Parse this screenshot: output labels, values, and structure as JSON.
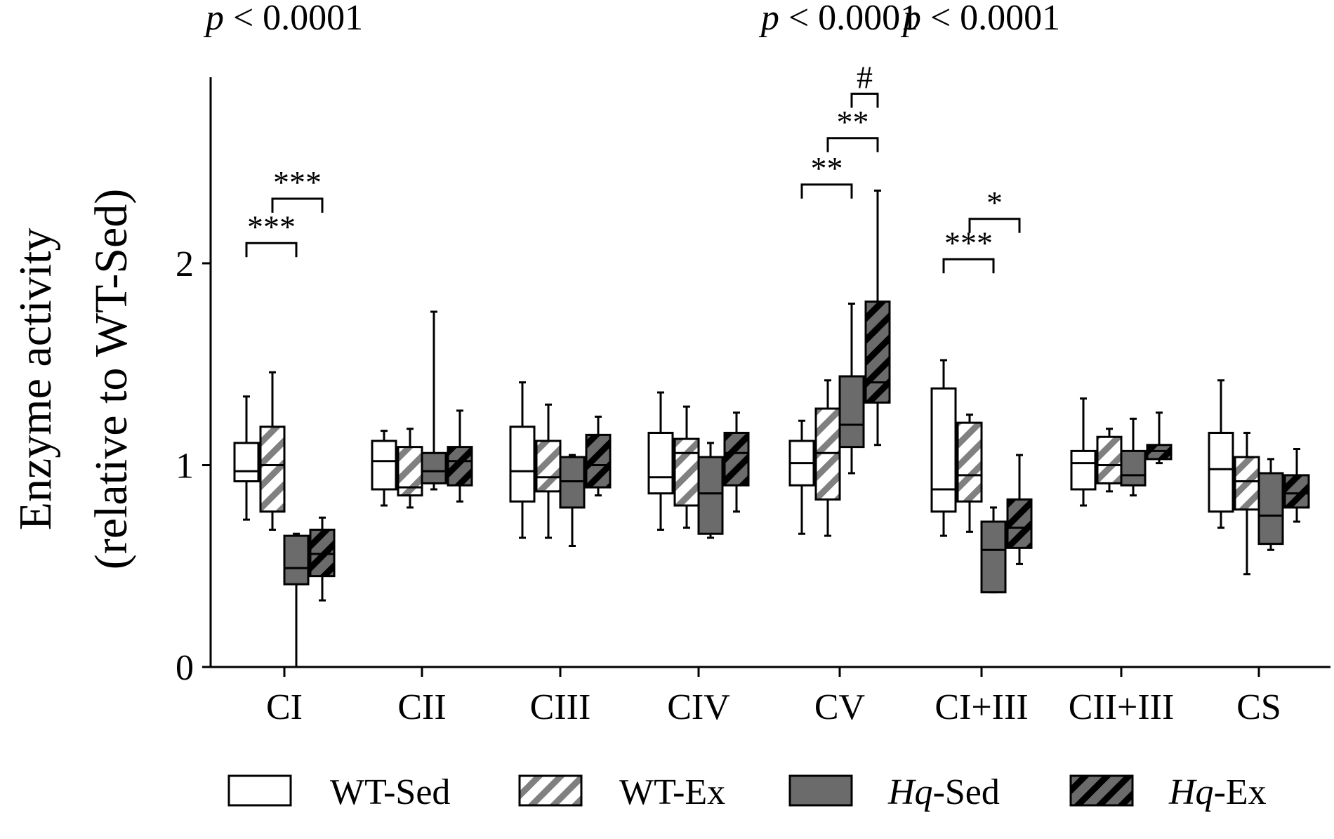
{
  "chart_data": {
    "type": "box",
    "title": "",
    "ylabel_line1": "Enzyme activity",
    "ylabel_line2": "(relative to WT-Sed)",
    "ylim": [
      0,
      2.9
    ],
    "yticks": [
      0,
      1,
      2
    ],
    "categories": [
      "CI",
      "CII",
      "CIII",
      "CIV",
      "CV",
      "CI+III",
      "CII+III",
      "CS"
    ],
    "series": [
      {
        "name": "WT-Sed",
        "prefix": "WT",
        "suffix": "-Sed",
        "italic_prefix": false,
        "pattern": "white",
        "boxes": [
          {
            "min": 0.73,
            "q1": 0.92,
            "median": 0.97,
            "q3": 1.11,
            "max": 1.34
          },
          {
            "min": 0.8,
            "q1": 0.88,
            "median": 1.02,
            "q3": 1.12,
            "max": 1.17
          },
          {
            "min": 0.64,
            "q1": 0.82,
            "median": 0.97,
            "q3": 1.19,
            "max": 1.41
          },
          {
            "min": 0.68,
            "q1": 0.86,
            "median": 0.94,
            "q3": 1.16,
            "max": 1.36
          },
          {
            "min": 0.66,
            "q1": 0.9,
            "median": 1.01,
            "q3": 1.12,
            "max": 1.22
          },
          {
            "min": 0.65,
            "q1": 0.77,
            "median": 0.88,
            "q3": 1.38,
            "max": 1.52
          },
          {
            "min": 0.8,
            "q1": 0.88,
            "median": 1.01,
            "q3": 1.07,
            "max": 1.33
          },
          {
            "min": 0.69,
            "q1": 0.77,
            "median": 0.98,
            "q3": 1.16,
            "max": 1.42
          }
        ]
      },
      {
        "name": "WT-Ex",
        "prefix": "WT",
        "suffix": "-Ex",
        "italic_prefix": false,
        "pattern": "white-hatch",
        "boxes": [
          {
            "min": 0.68,
            "q1": 0.77,
            "median": 1.0,
            "q3": 1.19,
            "max": 1.46
          },
          {
            "min": 0.79,
            "q1": 0.85,
            "median": 0.89,
            "q3": 1.09,
            "max": 1.18
          },
          {
            "min": 0.64,
            "q1": 0.87,
            "median": 0.94,
            "q3": 1.12,
            "max": 1.3
          },
          {
            "min": 0.69,
            "q1": 0.8,
            "median": 1.06,
            "q3": 1.13,
            "max": 1.29
          },
          {
            "min": 0.65,
            "q1": 0.83,
            "median": 1.06,
            "q3": 1.28,
            "max": 1.42
          },
          {
            "min": 0.67,
            "q1": 0.82,
            "median": 0.95,
            "q3": 1.21,
            "max": 1.25
          },
          {
            "min": 0.87,
            "q1": 0.91,
            "median": 1.0,
            "q3": 1.14,
            "max": 1.18
          },
          {
            "min": 0.46,
            "q1": 0.78,
            "median": 0.92,
            "q3": 1.04,
            "max": 1.16
          }
        ]
      },
      {
        "name": "Hq-Sed",
        "prefix": "Hq",
        "suffix": "-Sed",
        "italic_prefix": true,
        "pattern": "gray",
        "boxes": [
          {
            "min": 0.0,
            "q1": 0.41,
            "median": 0.49,
            "q3": 0.65,
            "max": 0.66
          },
          {
            "min": 0.88,
            "q1": 0.91,
            "median": 0.97,
            "q3": 1.06,
            "max": 1.76
          },
          {
            "min": 0.6,
            "q1": 0.79,
            "median": 0.92,
            "q3": 1.04,
            "max": 1.05
          },
          {
            "min": 0.64,
            "q1": 0.66,
            "median": 0.86,
            "q3": 1.04,
            "max": 1.11
          },
          {
            "min": 0.96,
            "q1": 1.09,
            "median": 1.2,
            "q3": 1.44,
            "max": 1.8
          },
          {
            "min": 0.37,
            "q1": 0.37,
            "median": 0.58,
            "q3": 0.72,
            "max": 0.79
          },
          {
            "min": 0.85,
            "q1": 0.9,
            "median": 0.95,
            "q3": 1.07,
            "max": 1.23
          },
          {
            "min": 0.58,
            "q1": 0.61,
            "median": 0.75,
            "q3": 0.96,
            "max": 1.03
          }
        ]
      },
      {
        "name": "Hq-Ex",
        "prefix": "Hq",
        "suffix": "-Ex",
        "italic_prefix": true,
        "pattern": "gray-hatch",
        "boxes": [
          {
            "min": 0.33,
            "q1": 0.45,
            "median": 0.56,
            "q3": 0.68,
            "max": 0.74
          },
          {
            "min": 0.82,
            "q1": 0.9,
            "median": 1.02,
            "q3": 1.09,
            "max": 1.27
          },
          {
            "min": 0.85,
            "q1": 0.89,
            "median": 1.0,
            "q3": 1.15,
            "max": 1.24
          },
          {
            "min": 0.77,
            "q1": 0.9,
            "median": 1.06,
            "q3": 1.16,
            "max": 1.26
          },
          {
            "min": 1.1,
            "q1": 1.31,
            "median": 1.41,
            "q3": 1.81,
            "max": 2.36
          },
          {
            "min": 0.51,
            "q1": 0.59,
            "median": 0.69,
            "q3": 0.83,
            "max": 1.05
          },
          {
            "min": 1.01,
            "q1": 1.03,
            "median": 1.07,
            "q3": 1.1,
            "max": 1.26
          },
          {
            "min": 0.72,
            "q1": 0.79,
            "median": 0.86,
            "q3": 0.95,
            "max": 1.08
          }
        ]
      }
    ],
    "pvalue_prefix": "p",
    "pvalues": [
      {
        "category": "CI",
        "text": "< 0.0001"
      },
      {
        "category": "CV",
        "text": "< 0.0001"
      },
      {
        "category": "CI+III",
        "text": "< 0.0001"
      }
    ],
    "brackets": [
      {
        "category": "CI",
        "from_series": 0,
        "to_series": 2,
        "y": 2.1,
        "label": "***"
      },
      {
        "category": "CI",
        "from_series": 1,
        "to_series": 3,
        "y": 2.32,
        "label": "***"
      },
      {
        "category": "CV",
        "from_series": 0,
        "to_series": 2,
        "y": 2.39,
        "label": "**"
      },
      {
        "category": "CV",
        "from_series": 1,
        "to_series": 3,
        "y": 2.62,
        "label": "**"
      },
      {
        "category": "CV",
        "from_series": 2,
        "to_series": 3,
        "y": 2.84,
        "label": "#"
      },
      {
        "category": "CI+III",
        "from_series": 0,
        "to_series": 2,
        "y": 2.02,
        "label": "***"
      },
      {
        "category": "CI+III",
        "from_series": 1,
        "to_series": 3,
        "y": 2.22,
        "label": "*"
      }
    ],
    "legend_position": "bottom"
  }
}
